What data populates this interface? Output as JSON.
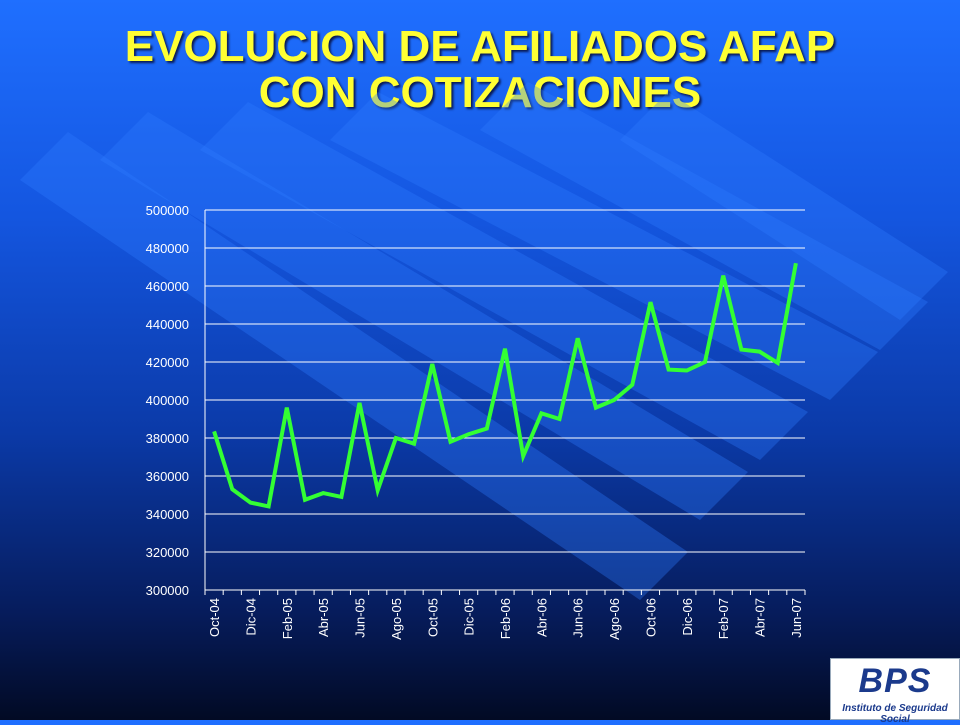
{
  "title_line1": "EVOLUCION DE AFILIADOS AFAP",
  "title_line2": "CON COTIZACIONES",
  "colors": {
    "line": "#33ff33",
    "title": "#ffff33",
    "gridline": "#ffffff",
    "text": "#ffffff"
  },
  "logo": {
    "mark": "BPS",
    "subtitle": "Instituto de Seguridad Social"
  },
  "chart_data": {
    "type": "line",
    "title": "",
    "xlabel": "",
    "ylabel": "",
    "ylim": [
      300000,
      500000
    ],
    "yticks": [
      300000,
      320000,
      340000,
      360000,
      380000,
      400000,
      420000,
      440000,
      460000,
      480000,
      500000
    ],
    "grid": true,
    "legend": "none",
    "x": [
      "Oct-04",
      "Nov-04",
      "Dic-04",
      "Ene-05",
      "Feb-05",
      "Mar-05",
      "Abr-05",
      "May-05",
      "Jun-05",
      "Jul-05",
      "Ago-05",
      "Sep-05",
      "Oct-05",
      "Nov-05",
      "Dic-05",
      "Ene-06",
      "Feb-06",
      "Mar-06",
      "Abr-06",
      "May-06",
      "Jun-06",
      "Jul-06",
      "Ago-06",
      "Sep-06",
      "Oct-06",
      "Nov-06",
      "Dic-06",
      "Ene-07",
      "Feb-07",
      "Mar-07",
      "Abr-07",
      "May-07",
      "Jun-07"
    ],
    "x_tick_labels": [
      "Oct-04",
      "Dic-04",
      "Feb-05",
      "Abr-05",
      "Jun-05",
      "Ago-05",
      "Oct-05",
      "Dic-05",
      "Feb-06",
      "Abr-06",
      "Jun-06",
      "Ago-06",
      "Oct-06",
      "Dic-06",
      "Feb-07",
      "Abr-07",
      "Jun-07"
    ],
    "series": [
      {
        "values": [
          383500,
          353000,
          346000,
          344000,
          396000,
          347500,
          351000,
          349000,
          398500,
          352500,
          380000,
          377000,
          419000,
          378000,
          382000,
          385000,
          427000,
          370500,
          393000,
          390000,
          432500,
          396000,
          400000,
          408000,
          451500,
          416000,
          415500,
          420000,
          465500,
          426500,
          425500,
          419500,
          472000
        ]
      }
    ]
  }
}
